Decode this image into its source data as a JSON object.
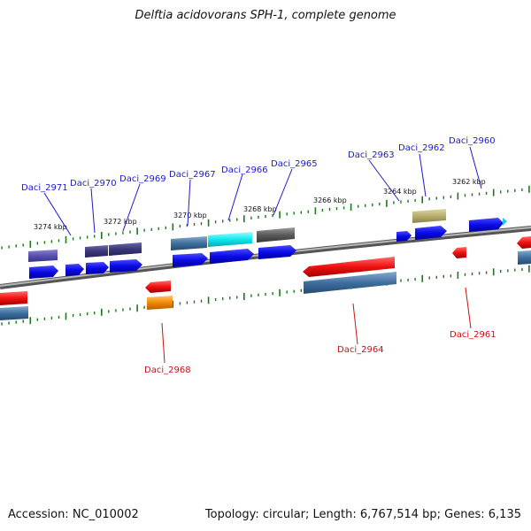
{
  "title": "Delftia acidovorans SPH-1, complete genome",
  "footer": {
    "accession": "Accession: NC_010002",
    "topology": "Topology: circular; Length: 6,767,514 bp; Genes: 6,135"
  },
  "scale_labels": [
    "3274 kbp",
    "3272 kbp",
    "3270 kbp",
    "3268 kbp",
    "3266 kbp",
    "3264 kbp",
    "3262 kbp"
  ],
  "genes_forward": [
    "Daci_2971",
    "Daci_2970",
    "Daci_2969",
    "Daci_2967",
    "Daci_2966",
    "Daci_2965",
    "Daci_2963",
    "Daci_2962",
    "Daci_2960"
  ],
  "genes_reverse": [
    "Daci_2968",
    "Daci_2964",
    "Daci_2961"
  ],
  "colors": {
    "forward_label": "#1a1ad0",
    "reverse_label": "#cc1111",
    "cds_forward": "#1010e0",
    "cds_reverse": "#ee1111",
    "backbone": "#808080",
    "tick": "#1a7a1a"
  }
}
